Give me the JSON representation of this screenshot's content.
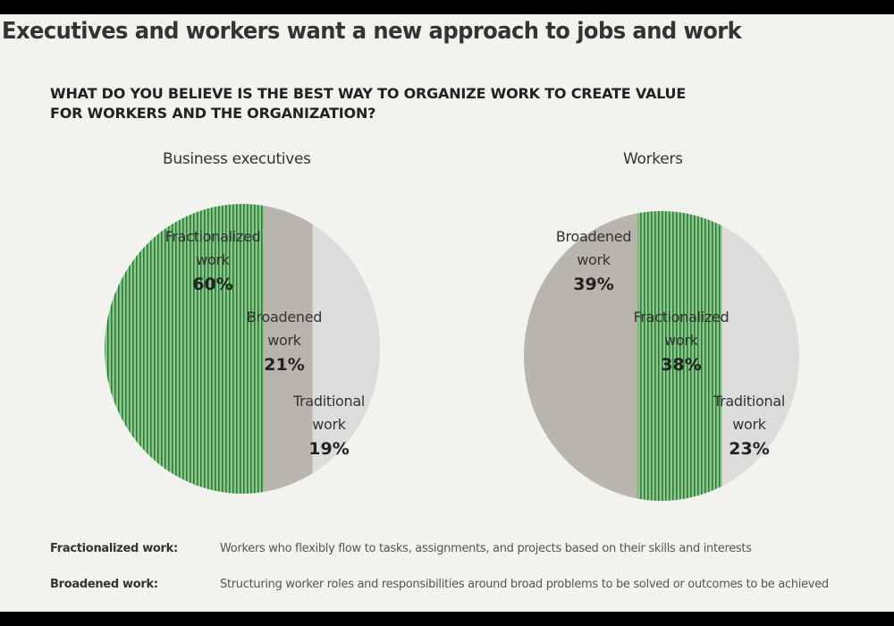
{
  "title": "Executives and workers want a new approach to jobs and work",
  "question": {
    "line1": "WHAT DO YOU BELIEVE IS THE BEST WAY TO ORGANIZE WORK TO CREATE VALUE",
    "line2": "FOR WORKERS AND THE ORGANIZATION?"
  },
  "colors": {
    "fractionalized": "#8cc98f",
    "fractionalized_stripe": "#2f7a36",
    "broadened": "#b9b5ad",
    "traditional": "#dcdcda"
  },
  "chart_data": [
    {
      "type": "pie",
      "title": "Business executives",
      "slices": [
        {
          "label_lines": [
            "Fractionalized",
            "work"
          ],
          "value": 60,
          "value_label": "60%",
          "key": "fractionalized"
        },
        {
          "label_lines": [
            "Broadened",
            "work"
          ],
          "value": 21,
          "value_label": "21%",
          "key": "broadened"
        },
        {
          "label_lines": [
            "Traditional",
            "work"
          ],
          "value": 19,
          "value_label": "19%",
          "key": "traditional"
        }
      ]
    },
    {
      "type": "pie",
      "title": "Workers",
      "slices": [
        {
          "label_lines": [
            "Broadened",
            "work"
          ],
          "value": 39,
          "value_label": "39%",
          "key": "broadened"
        },
        {
          "label_lines": [
            "Fractionalized",
            "work"
          ],
          "value": 38,
          "value_label": "38%",
          "key": "fractionalized"
        },
        {
          "label_lines": [
            "Traditional",
            "work"
          ],
          "value": 23,
          "value_label": "23%",
          "key": "traditional"
        }
      ]
    }
  ],
  "legend": [
    {
      "term": "Fractionalized work:",
      "definition": "Workers who flexibly flow to tasks, assignments, and projects based on their skills and interests"
    },
    {
      "term": "Broadened work:",
      "definition": "Structuring worker roles and responsibilities around broad problems to be solved or outcomes to be achieved"
    }
  ]
}
